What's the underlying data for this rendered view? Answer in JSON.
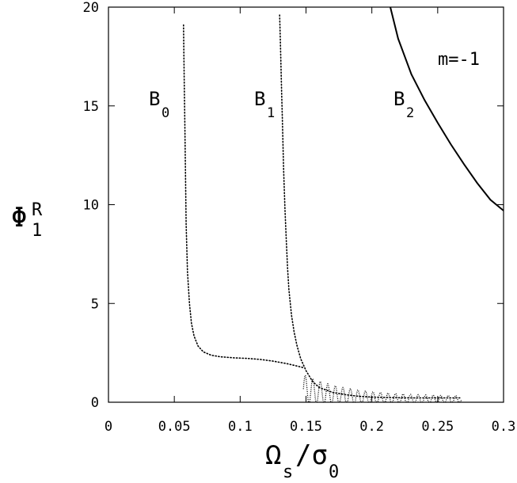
{
  "chart_data": {
    "type": "line",
    "xlim": [
      0,
      0.3
    ],
    "ylim": [
      0,
      20
    ],
    "x_ticks": [
      "0",
      "0.05",
      "0.1",
      "0.15",
      "0.2",
      "0.25",
      "0.3"
    ],
    "y_ticks": [
      "0",
      "5",
      "10",
      "15",
      "20"
    ],
    "xlabel": {
      "main": "Ω",
      "sub1": "s",
      "mid": "/σ",
      "sub2": "0"
    },
    "ylabel": {
      "main": "Φ",
      "sub": "1",
      "sup": "R"
    },
    "annotation": "m=-1",
    "grid": false,
    "series": [
      {
        "name": {
          "main": "B",
          "sub": "0"
        },
        "style": "dotted",
        "x": [
          0.057,
          0.0575,
          0.058,
          0.0585,
          0.059,
          0.06,
          0.0615,
          0.063,
          0.065,
          0.068,
          0.072,
          0.078,
          0.085,
          0.095,
          0.105,
          0.115,
          0.125,
          0.135,
          0.142,
          0.148
        ],
        "y": [
          19.1,
          16.5,
          14.0,
          11.5,
          9.0,
          6.6,
          5.0,
          4.0,
          3.35,
          2.85,
          2.55,
          2.38,
          2.3,
          2.25,
          2.22,
          2.17,
          2.08,
          1.96,
          1.85,
          1.75
        ]
      },
      {
        "name": {
          "main": "B",
          "sub": "1"
        },
        "style": "dotted",
        "x": [
          0.13,
          0.1305,
          0.131,
          0.1315,
          0.132,
          0.1325,
          0.133,
          0.134,
          0.135,
          0.136,
          0.137,
          0.139,
          0.141,
          0.143,
          0.146,
          0.15,
          0.155,
          0.16,
          0.17,
          0.18,
          0.19,
          0.2,
          0.21,
          0.22,
          0.23,
          0.24,
          0.25,
          0.26,
          0.268
        ],
        "y": [
          19.6,
          18.3,
          17.0,
          15.7,
          14.4,
          13.1,
          11.8,
          9.8,
          8.2,
          6.8,
          5.7,
          4.4,
          3.55,
          2.9,
          2.2,
          1.6,
          1.05,
          0.75,
          0.5,
          0.38,
          0.3,
          0.26,
          0.24,
          0.23,
          0.22,
          0.22,
          0.22,
          0.22,
          0.22
        ]
      },
      {
        "name": {
          "main": "B",
          "sub": "2"
        },
        "style": "solid",
        "x": [
          0.214,
          0.22,
          0.23,
          0.24,
          0.25,
          0.26,
          0.27,
          0.28,
          0.29,
          0.3
        ],
        "y": [
          20.0,
          18.4,
          16.6,
          15.3,
          14.15,
          13.05,
          12.05,
          11.1,
          10.25,
          9.7
        ]
      }
    ],
    "ripple": {
      "x_start": 0.148,
      "x_end": 0.268,
      "periods": 21
    }
  }
}
